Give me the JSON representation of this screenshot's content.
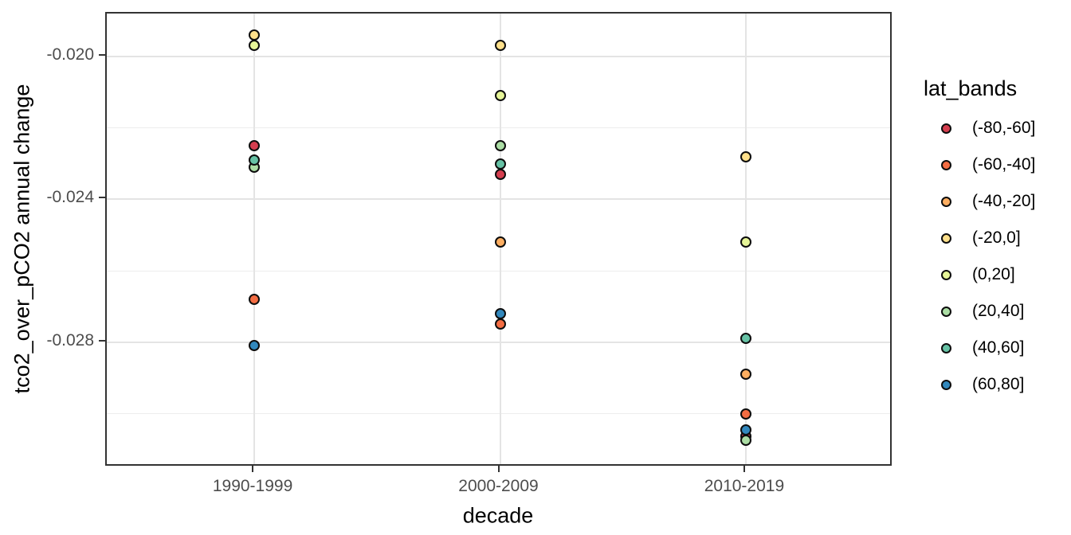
{
  "chart_data": {
    "type": "scatter",
    "title": "",
    "xlabel": "decade",
    "ylabel": "tco2_over_pCO2 annual change",
    "x_categories": [
      "1990-1999",
      "2000-2009",
      "2010-2019"
    ],
    "ylim": [
      -0.0315,
      -0.0188
    ],
    "y_major_ticks": [
      -0.02,
      -0.024,
      -0.028
    ],
    "y_major_tick_labels": [
      "-0.020",
      "-0.024",
      "-0.028"
    ],
    "y_minor_ticks": [
      -0.022,
      -0.026,
      -0.03
    ],
    "grid": true,
    "legend": {
      "title": "lat_bands",
      "position": "right"
    },
    "series": [
      {
        "name": "(-80,-60]",
        "color": "#d53e4f",
        "points": [
          {
            "x": "1990-1999",
            "y": -0.0225
          },
          {
            "x": "2000-2009",
            "y": -0.0233
          },
          {
            "x": "2010-2019",
            "y": -0.03062
          }
        ]
      },
      {
        "name": "(-60,-40]",
        "color": "#f46d43",
        "points": [
          {
            "x": "1990-1999",
            "y": -0.0268
          },
          {
            "x": "2000-2009",
            "y": -0.0275
          },
          {
            "x": "2010-2019",
            "y": -0.03
          }
        ]
      },
      {
        "name": "(-40,-20]",
        "color": "#fdae61",
        "points": [
          {
            "x": "2000-2009",
            "y": -0.0252
          },
          {
            "x": "2010-2019",
            "y": -0.0289
          }
        ]
      },
      {
        "name": "(-20,0]",
        "color": "#fee08b",
        "points": [
          {
            "x": "1990-1999",
            "y": -0.0194
          },
          {
            "x": "2000-2009",
            "y": -0.0197
          },
          {
            "x": "2010-2019",
            "y": -0.0228
          }
        ]
      },
      {
        "name": "(0,20]",
        "color": "#e6f598",
        "points": [
          {
            "x": "1990-1999",
            "y": -0.0197
          },
          {
            "x": "2000-2009",
            "y": -0.0211
          },
          {
            "x": "2010-2019",
            "y": -0.0252
          }
        ]
      },
      {
        "name": "(20,40]",
        "color": "#abdda4",
        "points": [
          {
            "x": "1990-1999",
            "y": -0.0231
          },
          {
            "x": "2000-2009",
            "y": -0.0225
          },
          {
            "x": "2010-2019",
            "y": -0.03074
          }
        ]
      },
      {
        "name": "(40,60]",
        "color": "#66c2a5",
        "points": [
          {
            "x": "1990-1999",
            "y": -0.0229
          },
          {
            "x": "2000-2009",
            "y": -0.023
          },
          {
            "x": "2010-2019",
            "y": -0.0279
          }
        ]
      },
      {
        "name": "(60,80]",
        "color": "#3288bd",
        "points": [
          {
            "x": "1990-1999",
            "y": -0.0281
          },
          {
            "x": "2000-2009",
            "y": -0.0272
          },
          {
            "x": "2010-2019",
            "y": -0.03045
          }
        ]
      }
    ],
    "theme": {
      "background": "#ffffff",
      "panel_border": "#333333",
      "grid_major": "#e4e4e4",
      "grid_minor": "#ededed",
      "tick_color": "#333333",
      "tick_label_color": "#4d4d4d",
      "title_color": "#000000",
      "point_stroke": "#0d0d0d"
    }
  }
}
